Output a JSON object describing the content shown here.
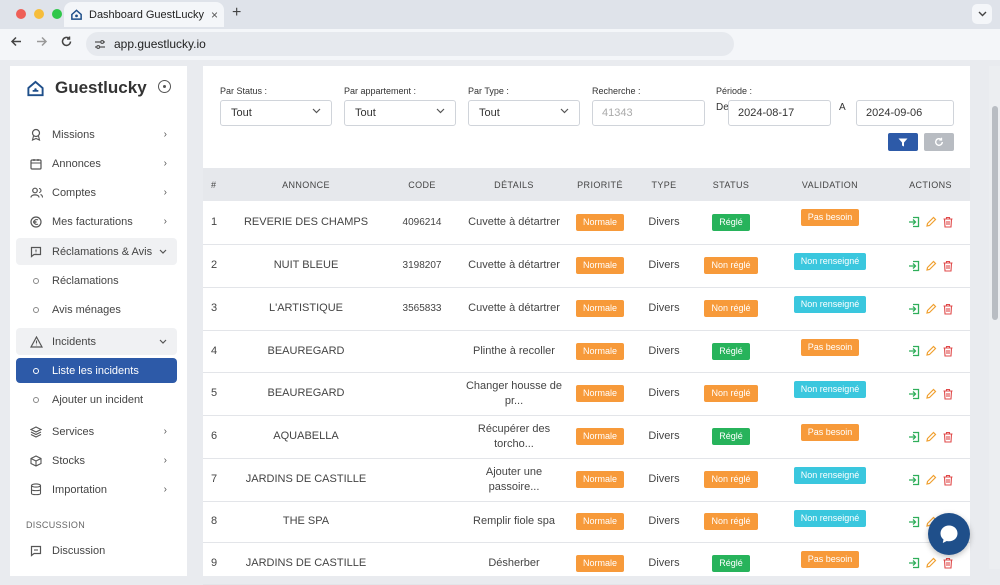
{
  "browser": {
    "tab_title": "Dashboard GuestLucky | Cre",
    "tab_close": "×",
    "new_tab": "+",
    "url": "app.guestlucky.io"
  },
  "sidebar": {
    "brand": "Guestlucky",
    "items": [
      {
        "label": "Missions",
        "icon": "award-icon"
      },
      {
        "label": "Annonces",
        "icon": "calendar-icon"
      },
      {
        "label": "Comptes",
        "icon": "users-icon"
      },
      {
        "label": "Mes facturations",
        "icon": "euro-icon"
      },
      {
        "label": "Réclamations & Avis",
        "icon": "message-icon"
      },
      {
        "label": "Réclamations",
        "icon": "sub"
      },
      {
        "label": "Avis ménages",
        "icon": "sub"
      },
      {
        "label": "Incidents",
        "icon": "alert-triangle-icon"
      },
      {
        "label": "Liste les incidents",
        "icon": "sub"
      },
      {
        "label": "Ajouter un incident",
        "icon": "sub"
      },
      {
        "label": "Services",
        "icon": "layers-icon"
      },
      {
        "label": "Stocks",
        "icon": "box-icon"
      },
      {
        "label": "Importation",
        "icon": "database-icon"
      }
    ],
    "section_label": "DISCUSSION",
    "discussion": "Discussion"
  },
  "filters": {
    "status_label": "Par Status :",
    "status_value": "Tout",
    "appartement_label": "Par appartement :",
    "appartement_value": "Tout",
    "type_label": "Par Type :",
    "type_value": "Tout",
    "search_label": "Recherche :",
    "search_placeholder": "41343",
    "periode_label": "Période :",
    "de_label": "De",
    "date_from": "2024-08-17",
    "a_label": "A",
    "date_to": "2024-09-06"
  },
  "table": {
    "headers": [
      "#",
      "ANNONCE",
      "CODE",
      "DÉTAILS",
      "PRIORITÉ",
      "TYPE",
      "STATUS",
      "VALIDATION",
      "ACTIONS"
    ],
    "rows": [
      {
        "num": "1",
        "annonce": "REVERIE DES CHAMPS",
        "code": "4096214",
        "details": "Cuvette à détartrer",
        "priorite": "Normale",
        "type": "Divers",
        "status": "Réglé",
        "validation": "Pas besoin"
      },
      {
        "num": "2",
        "annonce": "NUIT BLEUE",
        "code": "3198207",
        "details": "Cuvette à détartrer",
        "priorite": "Normale",
        "type": "Divers",
        "status": "Non réglé",
        "validation": "Non renseigné"
      },
      {
        "num": "3",
        "annonce": "L'ARTISTIQUE",
        "code": "3565833",
        "details": "Cuvette à détartrer",
        "priorite": "Normale",
        "type": "Divers",
        "status": "Non réglé",
        "validation": "Non renseigné"
      },
      {
        "num": "4",
        "annonce": "BEAUREGARD",
        "code": "",
        "details": "Plinthe à recoller",
        "priorite": "Normale",
        "type": "Divers",
        "status": "Réglé",
        "validation": "Pas besoin"
      },
      {
        "num": "5",
        "annonce": "BEAUREGARD",
        "code": "",
        "details": "Changer housse de pr...",
        "priorite": "Normale",
        "type": "Divers",
        "status": "Non réglé",
        "validation": "Non renseigné"
      },
      {
        "num": "6",
        "annonce": "AQUABELLA",
        "code": "",
        "details": "Récupérer des torcho...",
        "priorite": "Normale",
        "type": "Divers",
        "status": "Réglé",
        "validation": "Pas besoin"
      },
      {
        "num": "7",
        "annonce": "JARDINS DE CASTILLE",
        "code": "",
        "details": "Ajouter une passoire...",
        "priorite": "Normale",
        "type": "Divers",
        "status": "Non réglé",
        "validation": "Non renseigné"
      },
      {
        "num": "8",
        "annonce": "THE SPA",
        "code": "",
        "details": "Remplir fiole spa",
        "priorite": "Normale",
        "type": "Divers",
        "status": "Non réglé",
        "validation": "Non renseigné"
      },
      {
        "num": "9",
        "annonce": "JARDINS DE CASTILLE",
        "code": "",
        "details": "Désherber",
        "priorite": "Normale",
        "type": "Divers",
        "status": "Réglé",
        "validation": "Pas besoin"
      }
    ]
  },
  "colors": {
    "accent": "#2d5aa8",
    "priority": "#f79a3a",
    "regle": "#27b35b",
    "non_renseigne": "#3ac7de"
  }
}
